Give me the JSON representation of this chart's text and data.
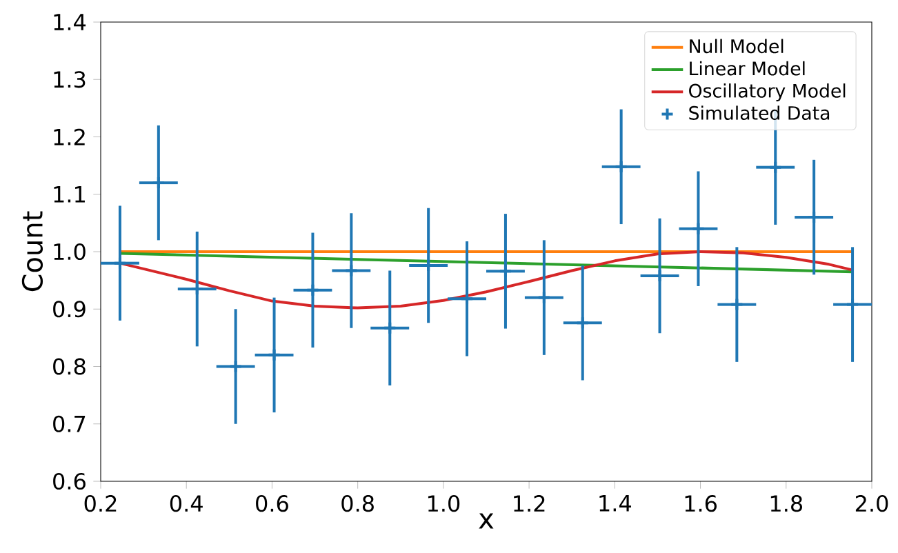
{
  "chart_data": {
    "type": "line",
    "xlabel": "x",
    "ylabel": "Count",
    "xlim": [
      0.2,
      2.0
    ],
    "ylim": [
      0.6,
      1.4
    ],
    "xticks": [
      {
        "value": 0.2,
        "label": "0.2"
      },
      {
        "value": 0.4,
        "label": "0.4"
      },
      {
        "value": 0.6,
        "label": "0.6"
      },
      {
        "value": 0.8,
        "label": "0.8"
      },
      {
        "value": 1.0,
        "label": "1.0"
      },
      {
        "value": 1.2,
        "label": "1.2"
      },
      {
        "value": 1.4,
        "label": "1.4"
      },
      {
        "value": 1.6,
        "label": "1.6"
      },
      {
        "value": 1.8,
        "label": "1.8"
      },
      {
        "value": 2.0,
        "label": "2.0"
      }
    ],
    "yticks": [
      {
        "value": 0.6,
        "label": "0.6"
      },
      {
        "value": 0.7,
        "label": "0.7"
      },
      {
        "value": 0.8,
        "label": "0.8"
      },
      {
        "value": 0.9,
        "label": "0.9"
      },
      {
        "value": 1.0,
        "label": "1.0"
      },
      {
        "value": 1.1,
        "label": "1.1"
      },
      {
        "value": 1.2,
        "label": "1.2"
      },
      {
        "value": 1.3,
        "label": "1.3"
      },
      {
        "value": 1.4,
        "label": "1.4"
      }
    ],
    "grid": false,
    "legend": "top right",
    "series": [
      {
        "name": "Null Model",
        "color": "#ff7f0e",
        "x": [
          0.245,
          1.955
        ],
        "values": [
          1.0,
          1.0
        ]
      },
      {
        "name": "Linear Model",
        "color": "#2ca02c",
        "x": [
          0.245,
          1.955
        ],
        "values": [
          0.997,
          0.965
        ]
      },
      {
        "name": "Oscillatory Model",
        "color": "#d62728",
        "x": [
          0.245,
          0.4,
          0.5,
          0.6,
          0.7,
          0.8,
          0.9,
          1.0,
          1.1,
          1.2,
          1.3,
          1.4,
          1.5,
          1.6,
          1.7,
          1.8,
          1.9,
          1.955
        ],
        "values": [
          0.98,
          0.952,
          0.932,
          0.914,
          0.905,
          0.902,
          0.905,
          0.915,
          0.93,
          0.948,
          0.967,
          0.984,
          0.996,
          1.0,
          0.998,
          0.99,
          0.978,
          0.968
        ]
      },
      {
        "name": "Simulated Data",
        "type": "scatter",
        "marker": "cross",
        "color": "#1f77b4",
        "x": [
          0.245,
          0.335,
          0.425,
          0.515,
          0.605,
          0.695,
          0.785,
          0.875,
          0.965,
          1.055,
          1.145,
          1.235,
          1.325,
          1.415,
          1.505,
          1.595,
          1.685,
          1.775,
          1.865,
          1.955
        ],
        "values": [
          0.98,
          1.12,
          0.935,
          0.8,
          0.82,
          0.933,
          0.967,
          0.867,
          0.976,
          0.918,
          0.966,
          0.92,
          0.876,
          1.148,
          0.958,
          1.04,
          0.908,
          1.147,
          1.06,
          0.908
        ],
        "errors": [
          0.1,
          0.1,
          0.1,
          0.1,
          0.1,
          0.1,
          0.1,
          0.1,
          0.1,
          0.1,
          0.1,
          0.1,
          0.1,
          0.1,
          0.1,
          0.1,
          0.1,
          0.1,
          0.1,
          0.1
        ],
        "xerrors": [
          0.045,
          0.045,
          0.045,
          0.045,
          0.045,
          0.045,
          0.045,
          0.045,
          0.045,
          0.045,
          0.045,
          0.045,
          0.045,
          0.045,
          0.045,
          0.045,
          0.045,
          0.045,
          0.045,
          0.045
        ]
      }
    ]
  }
}
